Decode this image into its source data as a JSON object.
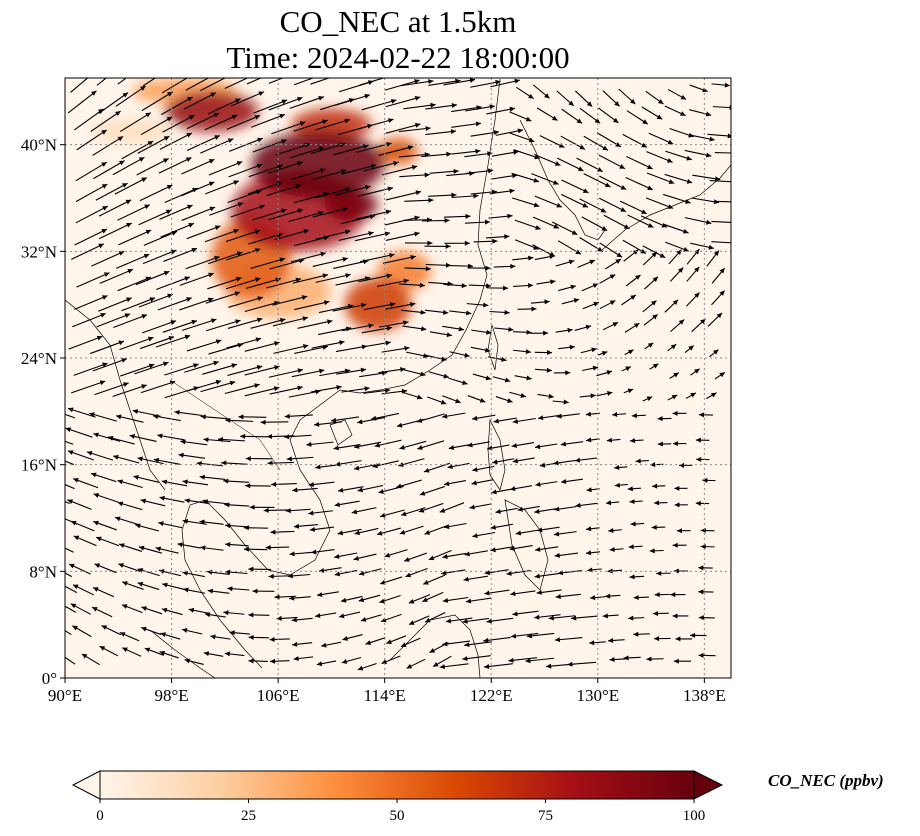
{
  "title": {
    "line1": "CO_NEC at 1.5km",
    "line2": "Time: 2024-02-22 18:00:00"
  },
  "map": {
    "lon_range": [
      90,
      140
    ],
    "lat_range": [
      0,
      45
    ],
    "lon_ticks": [
      {
        "value": 90,
        "label": "90°E"
      },
      {
        "value": 98,
        "label": "98°E"
      },
      {
        "value": 106,
        "label": "106°E"
      },
      {
        "value": 114,
        "label": "114°E"
      },
      {
        "value": 122,
        "label": "122°E"
      },
      {
        "value": 130,
        "label": "130°E"
      },
      {
        "value": 138,
        "label": "138°E"
      }
    ],
    "lat_ticks": [
      {
        "value": 0,
        "label": "0°"
      },
      {
        "value": 8,
        "label": "8°N"
      },
      {
        "value": 16,
        "label": "16°N"
      },
      {
        "value": 24,
        "label": "24°N"
      },
      {
        "value": 32,
        "label": "32°N"
      },
      {
        "value": 40,
        "label": "40°N"
      }
    ],
    "gridlines": true,
    "background_color": "#fff5eb",
    "concentration_blobs": [
      {
        "lon": 109.0,
        "lat": 38.5,
        "rlon": 5.0,
        "rlat": 2.5,
        "value": 100
      },
      {
        "lon": 101.0,
        "lat": 42.5,
        "rlon": 3.5,
        "rlat": 1.5,
        "value": 85
      },
      {
        "lon": 107.5,
        "lat": 35.0,
        "rlon": 5.0,
        "rlat": 3.0,
        "value": 80
      },
      {
        "lon": 111.5,
        "lat": 35.5,
        "rlon": 2.0,
        "rlat": 1.2,
        "value": 95
      },
      {
        "lon": 104.0,
        "lat": 31.5,
        "rlon": 3.0,
        "rlat": 3.0,
        "value": 55
      },
      {
        "lon": 113.5,
        "lat": 28.0,
        "rlon": 2.5,
        "rlat": 2.0,
        "value": 65
      },
      {
        "lon": 115.5,
        "lat": 30.5,
        "rlon": 2.0,
        "rlat": 1.5,
        "value": 45
      },
      {
        "lon": 99.0,
        "lat": 44.0,
        "rlon": 4.0,
        "rlat": 1.0,
        "value": 35
      },
      {
        "lon": 106.0,
        "lat": 29.0,
        "rlon": 4.0,
        "rlat": 2.0,
        "value": 30
      },
      {
        "lon": 115.0,
        "lat": 39.5,
        "rlon": 1.5,
        "rlat": 1.0,
        "value": 60
      },
      {
        "lon": 110.0,
        "lat": 41.5,
        "rlon": 3.0,
        "rlat": 1.2,
        "value": 70
      },
      {
        "lon": 95.0,
        "lat": 41.0,
        "rlon": 3.0,
        "rlat": 1.0,
        "value": 12
      }
    ]
  },
  "colorbar": {
    "vmin": 0,
    "vmax": 100,
    "ticks": [
      0,
      25,
      50,
      75,
      100
    ],
    "colormap": [
      "#fff5eb",
      "#fdd0a2",
      "#fd8d3c",
      "#d94801",
      "#a50f15",
      "#67000d"
    ],
    "extend": "both",
    "label": "CO_NEC (ppbv)"
  },
  "wind": {
    "vector_color": "#000000"
  }
}
